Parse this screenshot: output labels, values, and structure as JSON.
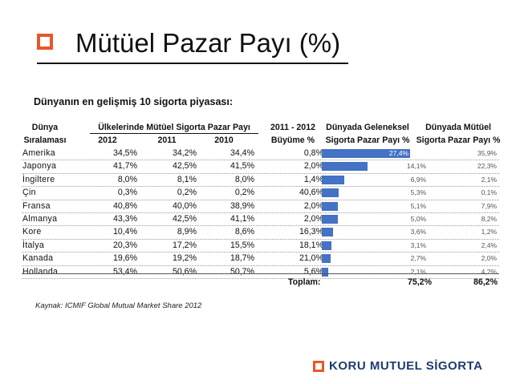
{
  "title": "Mütüel Pazar Payı (%)",
  "subtitle": "Dünyanın en gelişmiş 10 sigorta piyasası:",
  "headers": {
    "rank_1": "Dünya",
    "rank_2": "Sıralaması",
    "share_group": "Ülkelerinde Mütüel Sigorta Pazar Payı",
    "y2012": "2012",
    "y2011": "2011",
    "y2010": "2010",
    "growth_1": "2011 - 2012",
    "growth_2": "Büyüme %",
    "conv_1": "Dünyada Geleneksel",
    "conv_2": "Sigorta Pazar Payı %",
    "mut_1": "Dünyada Mütüel",
    "mut_2": "Sigorta Pazar Payı %"
  },
  "rows": [
    {
      "country": "Amerika",
      "y2012": "34,5%",
      "y2011": "34,2%",
      "y2010": "34,4%",
      "growth": "0,8%",
      "conv": "27,4%",
      "conv_value": 27.4,
      "mut": "35,9%"
    },
    {
      "country": "Japonya",
      "y2012": "41,7%",
      "y2011": "42,5%",
      "y2010": "41,5%",
      "growth": "2,0%",
      "conv": "14,1%",
      "conv_value": 14.1,
      "mut": "22,3%"
    },
    {
      "country": "İngiltere",
      "y2012": "8,0%",
      "y2011": "8,1%",
      "y2010": "8,0%",
      "growth": "1,4%",
      "conv": "6,9%",
      "conv_value": 6.9,
      "mut": "2,1%"
    },
    {
      "country": "Çin",
      "y2012": "0,3%",
      "y2011": "0,2%",
      "y2010": "0,2%",
      "growth": "40,6%",
      "conv": "5,3%",
      "conv_value": 5.3,
      "mut": "0,1%"
    },
    {
      "country": "Fransa",
      "y2012": "40,8%",
      "y2011": "40,0%",
      "y2010": "38,9%",
      "growth": "2,0%",
      "conv": "5,1%",
      "conv_value": 5.1,
      "mut": "7,9%"
    },
    {
      "country": "Almanya",
      "y2012": "43,3%",
      "y2011": "42,5%",
      "y2010": "41,1%",
      "growth": "2,0%",
      "conv": "5,0%",
      "conv_value": 5.0,
      "mut": "8,2%"
    },
    {
      "country": "Kore",
      "y2012": "10,4%",
      "y2011": "8,9%",
      "y2010": "8,6%",
      "growth": "16,3%",
      "conv": "3,6%",
      "conv_value": 3.6,
      "mut": "1,2%"
    },
    {
      "country": "İtalya",
      "y2012": "20,3%",
      "y2011": "17,2%",
      "y2010": "15,5%",
      "growth": "18,1%",
      "conv": "3,1%",
      "conv_value": 3.1,
      "mut": "2,4%"
    },
    {
      "country": "Kanada",
      "y2012": "19,6%",
      "y2011": "19,2%",
      "y2010": "18,7%",
      "growth": "21,0%",
      "conv": "2,7%",
      "conv_value": 2.7,
      "mut": "2,0%"
    },
    {
      "country": "Hollanda",
      "y2012": "53,4%",
      "y2011": "50,6%",
      "y2010": "50,7%",
      "growth": "5,6%",
      "conv": "2,1%",
      "conv_value": 2.1,
      "mut": "4,2%"
    }
  ],
  "totals": {
    "label": "Toplam:",
    "conv": "75,2%",
    "mut": "86,2%"
  },
  "source": "Kaynak: ICMIF Global Mutual Market Share 2012",
  "brand": "KORU MUTUEL SİGORTA",
  "colors": {
    "accent": "#e8572a",
    "bar": "#4472c4",
    "brand_text": "#1f3b6f"
  }
}
